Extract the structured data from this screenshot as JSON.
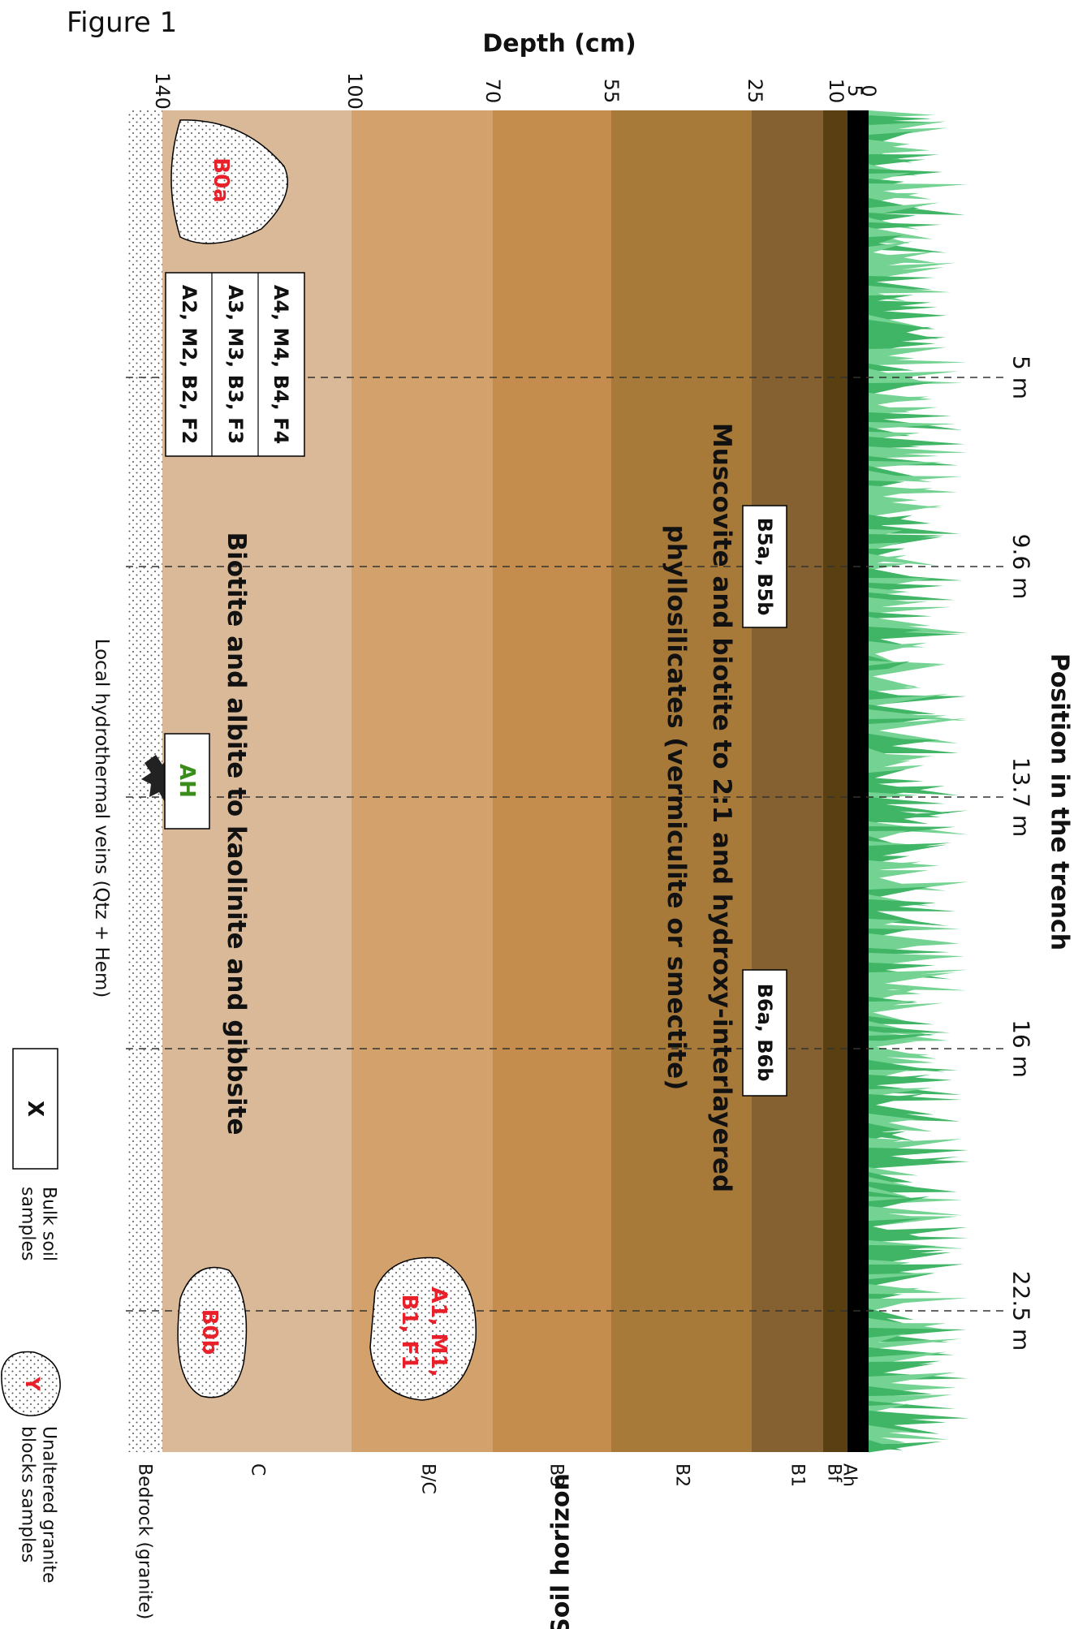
{
  "figure_label": "Figure 1",
  "depth_axis": {
    "title": "Depth (cm)",
    "ticks": [
      "0",
      "5",
      "10",
      "25",
      "55",
      "70",
      "100",
      "140"
    ]
  },
  "position_axis": {
    "title": "Position in the trench",
    "ticks": [
      "5 m",
      "9.6 m",
      "13.7 m",
      "16 m",
      "22.5 m"
    ]
  },
  "soil_horizon": {
    "title": "Soil horizon",
    "labels": [
      "Ah",
      "Bf",
      "B1",
      "B2",
      "B3",
      "B/C",
      "C",
      "Bedrock (granite)"
    ]
  },
  "annotations": {
    "upper_weathering": [
      "Muscovite and biotite to 2:1 and hydroxy-interlayered",
      "phyllosilicates (vermiculite or smectite)"
    ],
    "lower_weathering": "Biotite and albite to kaolinite and gibbsite",
    "veins": "Local hydrothermal veins (Qtz + Hem)"
  },
  "bulk_samples": {
    "table": [
      "A4, M4, B4, F4",
      "A3, M3, B3, F3",
      "A2, M2, B2, F2"
    ],
    "b5": "B5a, B5b",
    "b6": "B6a, B6b",
    "ah": "AH"
  },
  "granite_blocks": {
    "b0a": "B0a",
    "b0b": "B0b",
    "a1": [
      "A1, M1,",
      "B1, F1"
    ]
  },
  "legend": {
    "bulk": {
      "symbol": "X",
      "label": [
        "Bulk soil",
        "samples"
      ]
    },
    "granite": {
      "symbol": "Y",
      "label": [
        "Unaltered granite",
        "blocks samples"
      ]
    }
  }
}
